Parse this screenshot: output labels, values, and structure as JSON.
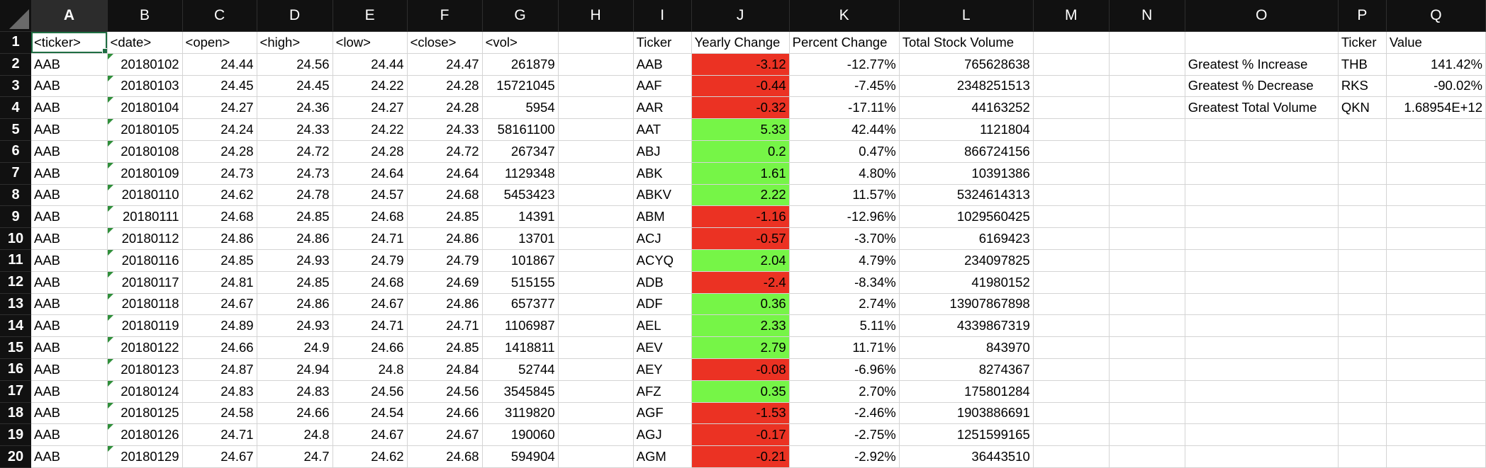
{
  "columns": [
    "A",
    "B",
    "C",
    "D",
    "E",
    "F",
    "G",
    "H",
    "I",
    "J",
    "K",
    "L",
    "M",
    "N",
    "O",
    "P",
    "Q"
  ],
  "selected_column": "A",
  "active_cell": "A1",
  "rows": [
    {
      "n": "1",
      "cells": [
        "<ticker>",
        "<date>",
        "<open>",
        "<high>",
        "<low>",
        "<close>",
        "<vol>",
        "",
        "Ticker",
        "Yearly Change",
        "Percent Change",
        "Total Stock Volume",
        "",
        "",
        "",
        "Ticker",
        "Value"
      ]
    },
    {
      "n": "2",
      "cells": [
        "AAB",
        "20180102",
        "24.44",
        "24.56",
        "24.44",
        "24.47",
        "261879",
        "",
        "AAB",
        "-3.12",
        "-12.77%",
        "765628638",
        "",
        "",
        "Greatest % Increase",
        "THB",
        "141.42%"
      ]
    },
    {
      "n": "3",
      "cells": [
        "AAB",
        "20180103",
        "24.45",
        "24.45",
        "24.22",
        "24.28",
        "15721045",
        "",
        "AAF",
        "-0.44",
        "-7.45%",
        "2348251513",
        "",
        "",
        "Greatest % Decrease",
        "RKS",
        "-90.02%"
      ]
    },
    {
      "n": "4",
      "cells": [
        "AAB",
        "20180104",
        "24.27",
        "24.36",
        "24.27",
        "24.28",
        "5954",
        "",
        "AAR",
        "-0.32",
        "-17.11%",
        "44163252",
        "",
        "",
        "Greatest Total Volume",
        "QKN",
        "1.68954E+12"
      ]
    },
    {
      "n": "5",
      "cells": [
        "AAB",
        "20180105",
        "24.24",
        "24.33",
        "24.22",
        "24.33",
        "58161100",
        "",
        "AAT",
        "5.33",
        "42.44%",
        "1121804",
        "",
        "",
        "",
        "",
        ""
      ]
    },
    {
      "n": "6",
      "cells": [
        "AAB",
        "20180108",
        "24.28",
        "24.72",
        "24.28",
        "24.72",
        "267347",
        "",
        "ABJ",
        "0.2",
        "0.47%",
        "866724156",
        "",
        "",
        "",
        "",
        ""
      ]
    },
    {
      "n": "7",
      "cells": [
        "AAB",
        "20180109",
        "24.73",
        "24.73",
        "24.64",
        "24.64",
        "1129348",
        "",
        "ABK",
        "1.61",
        "4.80%",
        "10391386",
        "",
        "",
        "",
        "",
        ""
      ]
    },
    {
      "n": "8",
      "cells": [
        "AAB",
        "20180110",
        "24.62",
        "24.78",
        "24.57",
        "24.68",
        "5453423",
        "",
        "ABKV",
        "2.22",
        "11.57%",
        "5324614313",
        "",
        "",
        "",
        "",
        ""
      ]
    },
    {
      "n": "9",
      "cells": [
        "AAB",
        "20180111",
        "24.68",
        "24.85",
        "24.68",
        "24.85",
        "14391",
        "",
        "ABM",
        "-1.16",
        "-12.96%",
        "1029560425",
        "",
        "",
        "",
        "",
        ""
      ]
    },
    {
      "n": "10",
      "cells": [
        "AAB",
        "20180112",
        "24.86",
        "24.86",
        "24.71",
        "24.86",
        "13701",
        "",
        "ACJ",
        "-0.57",
        "-3.70%",
        "6169423",
        "",
        "",
        "",
        "",
        ""
      ]
    },
    {
      "n": "11",
      "cells": [
        "AAB",
        "20180116",
        "24.85",
        "24.93",
        "24.79",
        "24.79",
        "101867",
        "",
        "ACYQ",
        "2.04",
        "4.79%",
        "234097825",
        "",
        "",
        "",
        "",
        ""
      ]
    },
    {
      "n": "12",
      "cells": [
        "AAB",
        "20180117",
        "24.81",
        "24.85",
        "24.68",
        "24.69",
        "515155",
        "",
        "ADB",
        "-2.4",
        "-8.34%",
        "41980152",
        "",
        "",
        "",
        "",
        ""
      ]
    },
    {
      "n": "13",
      "cells": [
        "AAB",
        "20180118",
        "24.67",
        "24.86",
        "24.67",
        "24.86",
        "657377",
        "",
        "ADF",
        "0.36",
        "2.74%",
        "13907867898",
        "",
        "",
        "",
        "",
        ""
      ]
    },
    {
      "n": "14",
      "cells": [
        "AAB",
        "20180119",
        "24.89",
        "24.93",
        "24.71",
        "24.71",
        "1106987",
        "",
        "AEL",
        "2.33",
        "5.11%",
        "4339867319",
        "",
        "",
        "",
        "",
        ""
      ]
    },
    {
      "n": "15",
      "cells": [
        "AAB",
        "20180122",
        "24.66",
        "24.9",
        "24.66",
        "24.85",
        "1418811",
        "",
        "AEV",
        "2.79",
        "11.71%",
        "843970",
        "",
        "",
        "",
        "",
        ""
      ]
    },
    {
      "n": "16",
      "cells": [
        "AAB",
        "20180123",
        "24.87",
        "24.94",
        "24.8",
        "24.84",
        "52744",
        "",
        "AEY",
        "-0.08",
        "-6.96%",
        "8274367",
        "",
        "",
        "",
        "",
        ""
      ]
    },
    {
      "n": "17",
      "cells": [
        "AAB",
        "20180124",
        "24.83",
        "24.83",
        "24.56",
        "24.56",
        "3545845",
        "",
        "AFZ",
        "0.35",
        "2.70%",
        "175801284",
        "",
        "",
        "",
        "",
        ""
      ]
    },
    {
      "n": "18",
      "cells": [
        "AAB",
        "20180125",
        "24.58",
        "24.66",
        "24.54",
        "24.66",
        "3119820",
        "",
        "AGF",
        "-1.53",
        "-2.46%",
        "1903886691",
        "",
        "",
        "",
        "",
        ""
      ]
    },
    {
      "n": "19",
      "cells": [
        "AAB",
        "20180126",
        "24.71",
        "24.8",
        "24.67",
        "24.67",
        "190060",
        "",
        "AGJ",
        "-0.17",
        "-2.75%",
        "1251599165",
        "",
        "",
        "",
        "",
        ""
      ]
    },
    {
      "n": "20",
      "cells": [
        "AAB",
        "20180129",
        "24.67",
        "24.7",
        "24.62",
        "24.68",
        "594904",
        "",
        "AGM",
        "-0.21",
        "-2.92%",
        "36443510",
        "",
        "",
        "",
        "",
        ""
      ]
    }
  ],
  "colors": {
    "positive_fill": "#76f547",
    "negative_fill": "#eb3223",
    "header_bg": "#111111",
    "selection": "#1f6e43"
  }
}
